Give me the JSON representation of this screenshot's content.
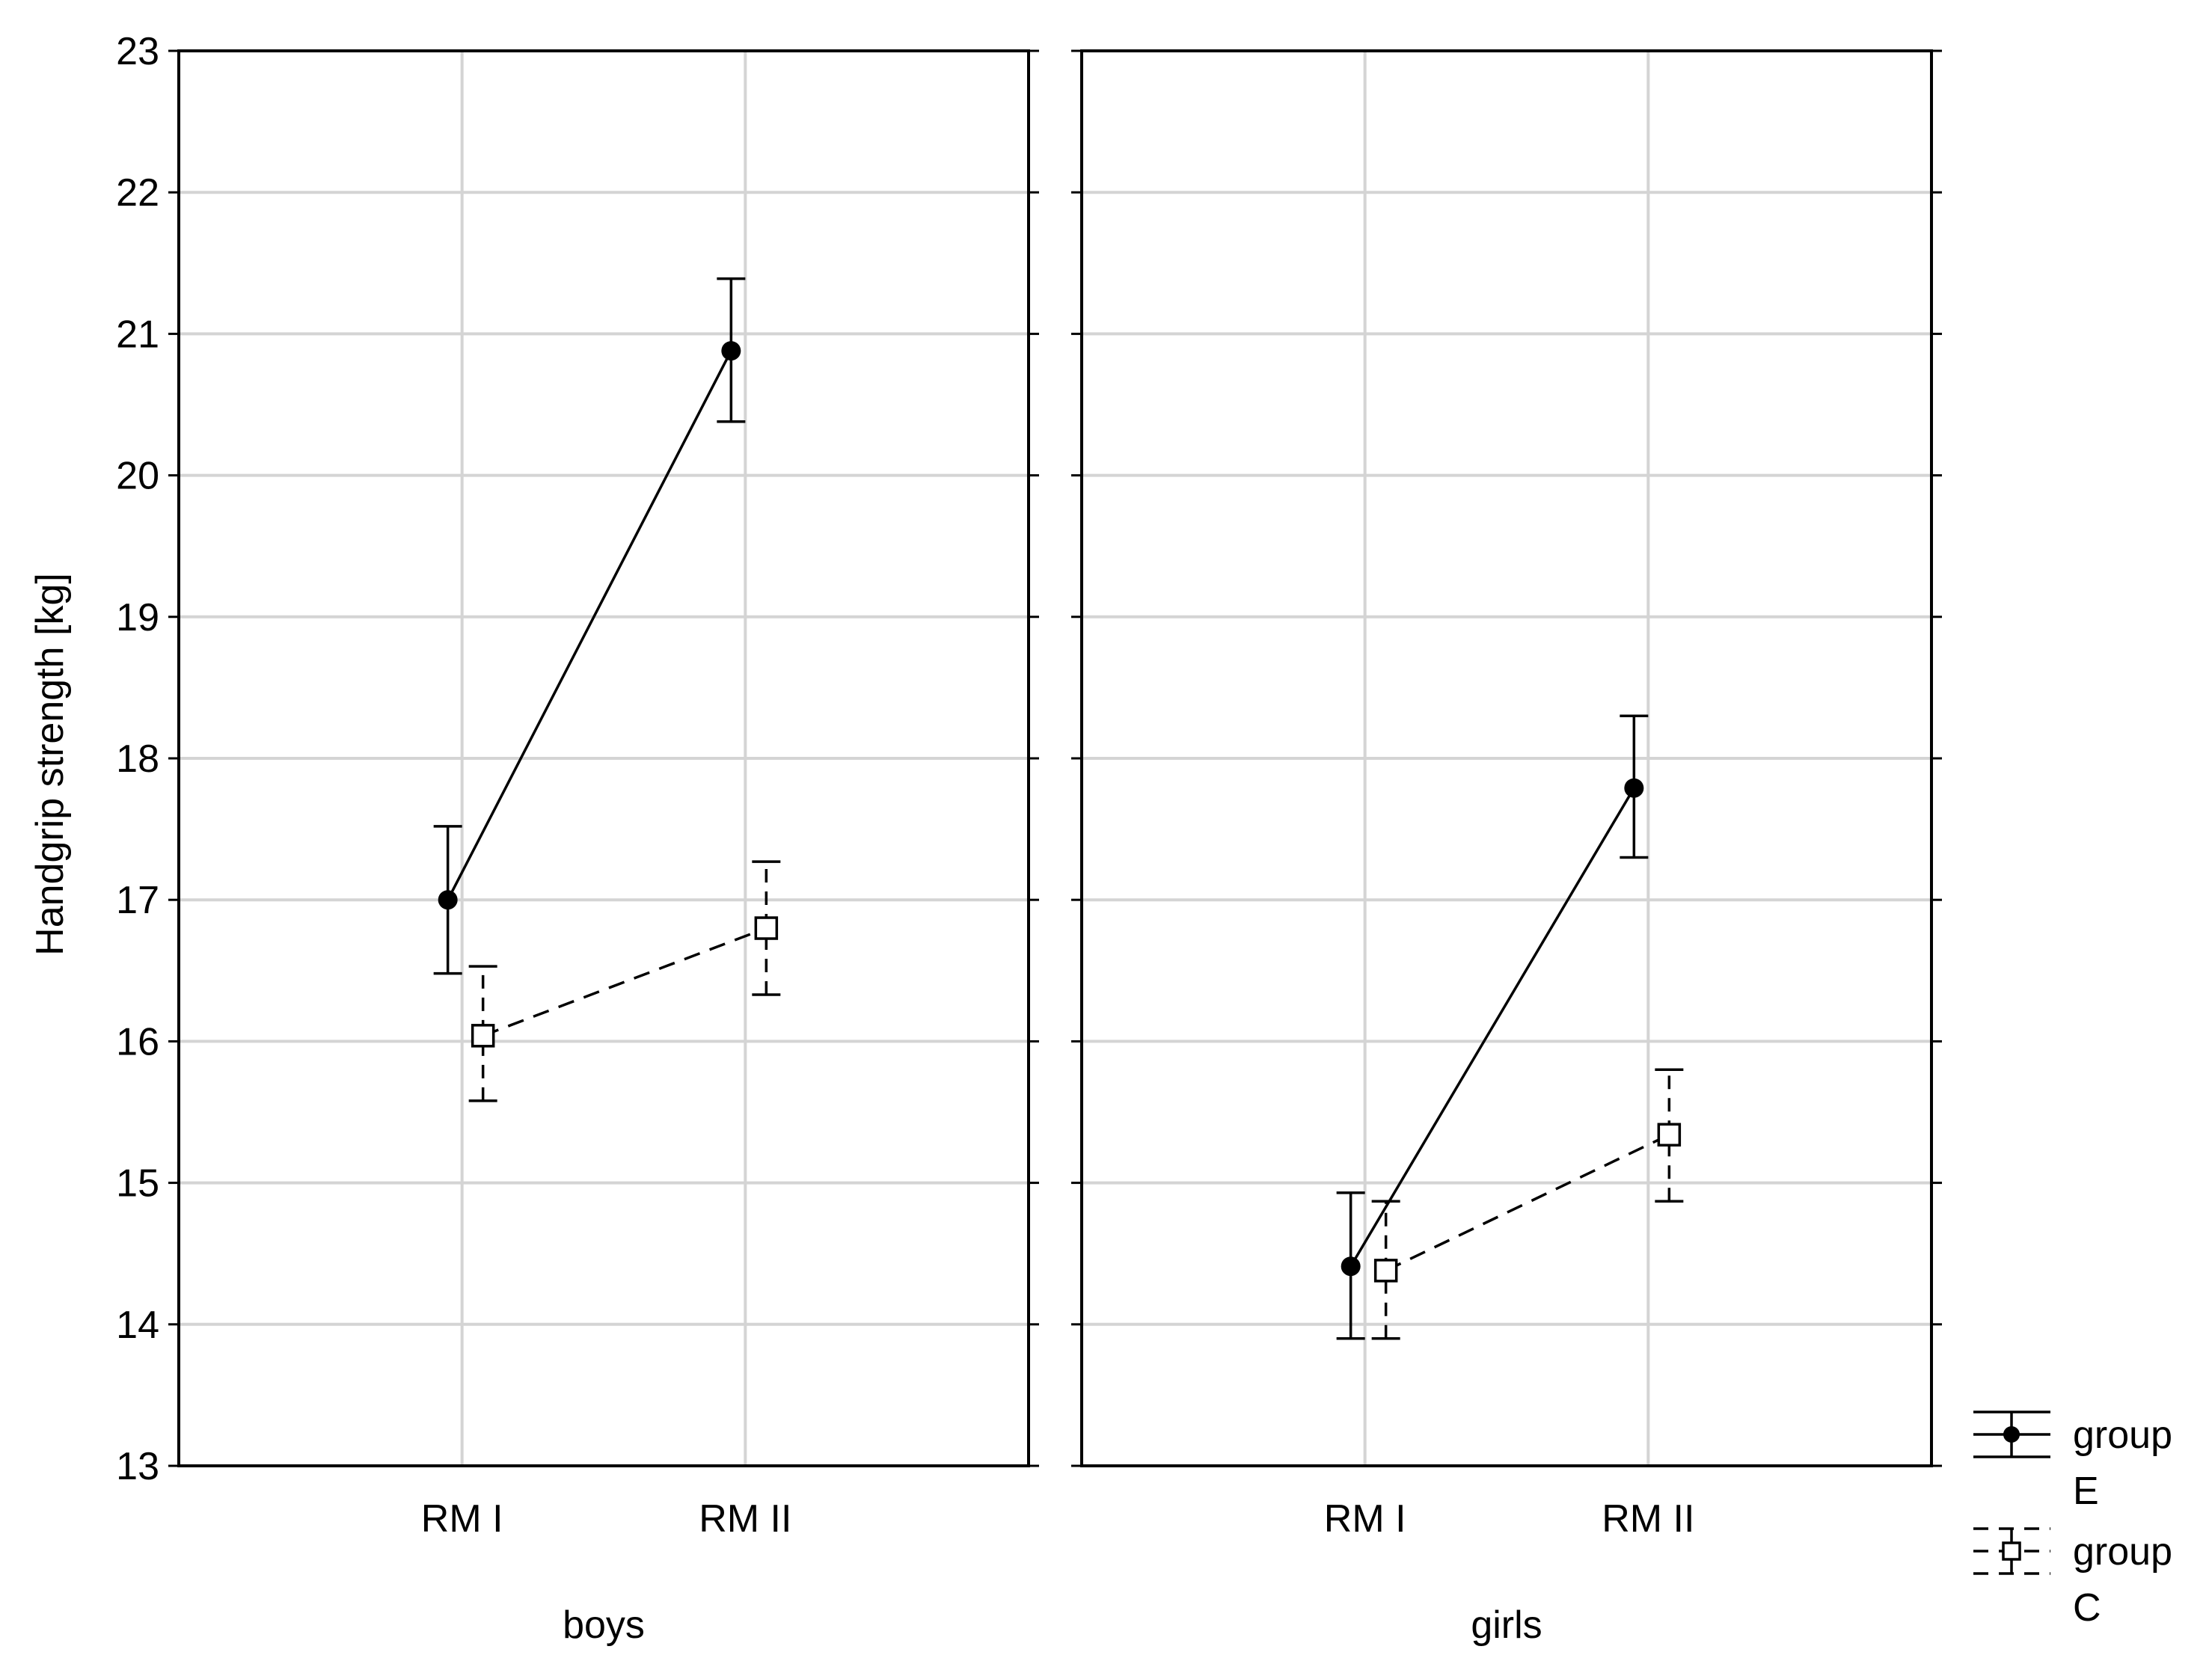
{
  "chart_data": {
    "type": "line",
    "ylabel": "Handgrip strength [kg]",
    "ylim": [
      13,
      23
    ],
    "yticks": [
      13,
      14,
      15,
      16,
      17,
      18,
      19,
      20,
      21,
      22,
      23
    ],
    "grid": true,
    "legend_position": "bottom-right",
    "categories": [
      "RM I",
      "RM II"
    ],
    "panels": [
      {
        "label": "boys",
        "series": [
          {
            "name": "group E",
            "values": [
              17.0,
              20.88
            ],
            "error_low": [
              16.48,
              20.38
            ],
            "error_high": [
              17.52,
              21.39
            ]
          },
          {
            "name": "group C",
            "values": [
              16.04,
              16.8
            ],
            "error_low": [
              15.58,
              16.33
            ],
            "error_high": [
              16.53,
              17.27
            ]
          }
        ]
      },
      {
        "label": "girls",
        "series": [
          {
            "name": "group E",
            "values": [
              14.41,
              17.79
            ],
            "error_low": [
              13.9,
              17.3
            ],
            "error_high": [
              14.93,
              18.3
            ]
          },
          {
            "name": "group C",
            "values": [
              14.38,
              15.34
            ],
            "error_low": [
              13.9,
              14.87
            ],
            "error_high": [
              14.87,
              15.8
            ]
          }
        ]
      }
    ],
    "legend": [
      {
        "line1": "group",
        "line2": "E",
        "style": "solid",
        "marker": "filled-circle"
      },
      {
        "line1": "group",
        "line2": "C",
        "style": "dashed",
        "marker": "open-square"
      }
    ]
  }
}
